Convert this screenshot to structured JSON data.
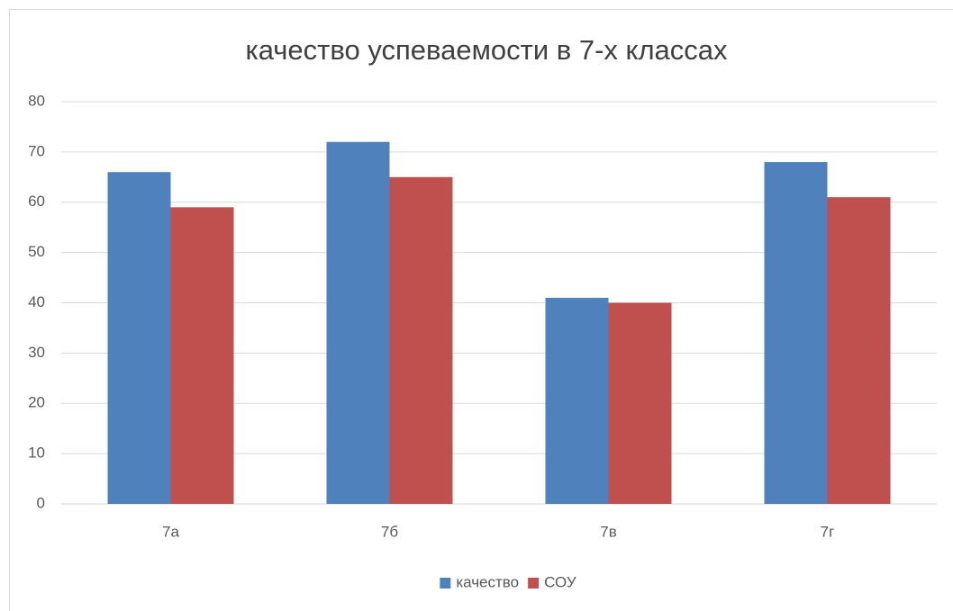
{
  "chart_data": {
    "type": "bar",
    "title": "качество успеваемости в 7-х классах",
    "categories": [
      "7а",
      "7б",
      "7в",
      "7г"
    ],
    "series": [
      {
        "name": "качество",
        "color": "#4f81bd",
        "values": [
          66,
          72,
          41,
          68
        ]
      },
      {
        "name": "СОУ",
        "color": "#c0504d",
        "values": [
          59,
          65,
          40,
          61
        ]
      }
    ],
    "ylim": [
      0,
      80
    ],
    "yticks": [
      0,
      10,
      20,
      30,
      40,
      50,
      60,
      70,
      80
    ],
    "grid": true,
    "legend": "bottom"
  }
}
